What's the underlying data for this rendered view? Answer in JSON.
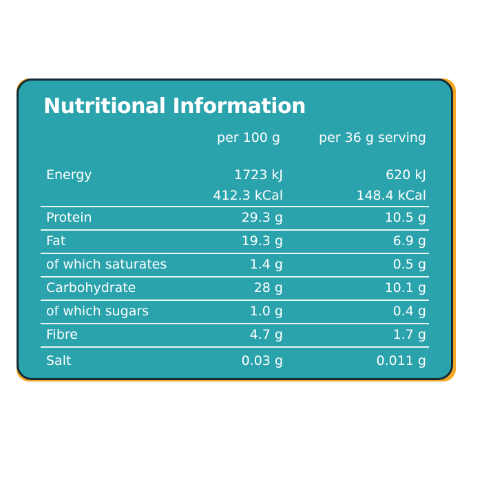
{
  "title": "Nutritional Information",
  "columns": {
    "per_100g": "per 100 g",
    "per_serving": "per 36 g serving"
  },
  "energy": {
    "name": "Energy",
    "kj_100g": "1723 kJ",
    "kj_serving": "620 kJ",
    "kcal_100g": "412.3 kCal",
    "kcal_serving": "148.4 kCal"
  },
  "rows": [
    {
      "name": "Protein",
      "per_100g": "29.3 g",
      "per_serving": "10.5 g"
    },
    {
      "name": "Fat",
      "per_100g": "19.3 g",
      "per_serving": "6.9 g"
    },
    {
      "name": "of which saturates",
      "per_100g": "1.4 g",
      "per_serving": "0.5 g"
    },
    {
      "name": "Carbohydrate",
      "per_100g": "28 g",
      "per_serving": "10.1 g"
    },
    {
      "name": "of which sugars",
      "per_100g": "1.0 g",
      "per_serving": "0.4 g"
    },
    {
      "name": "Fibre",
      "per_100g": "4.7 g",
      "per_serving": "1.7 g"
    },
    {
      "name": "Salt",
      "per_100g": "0.03 g",
      "per_serving": "0.011 g"
    }
  ],
  "colors": {
    "panel": "#2ba3ad",
    "accent": "#f5a623",
    "border": "#152b36",
    "text": "#ffffff"
  }
}
